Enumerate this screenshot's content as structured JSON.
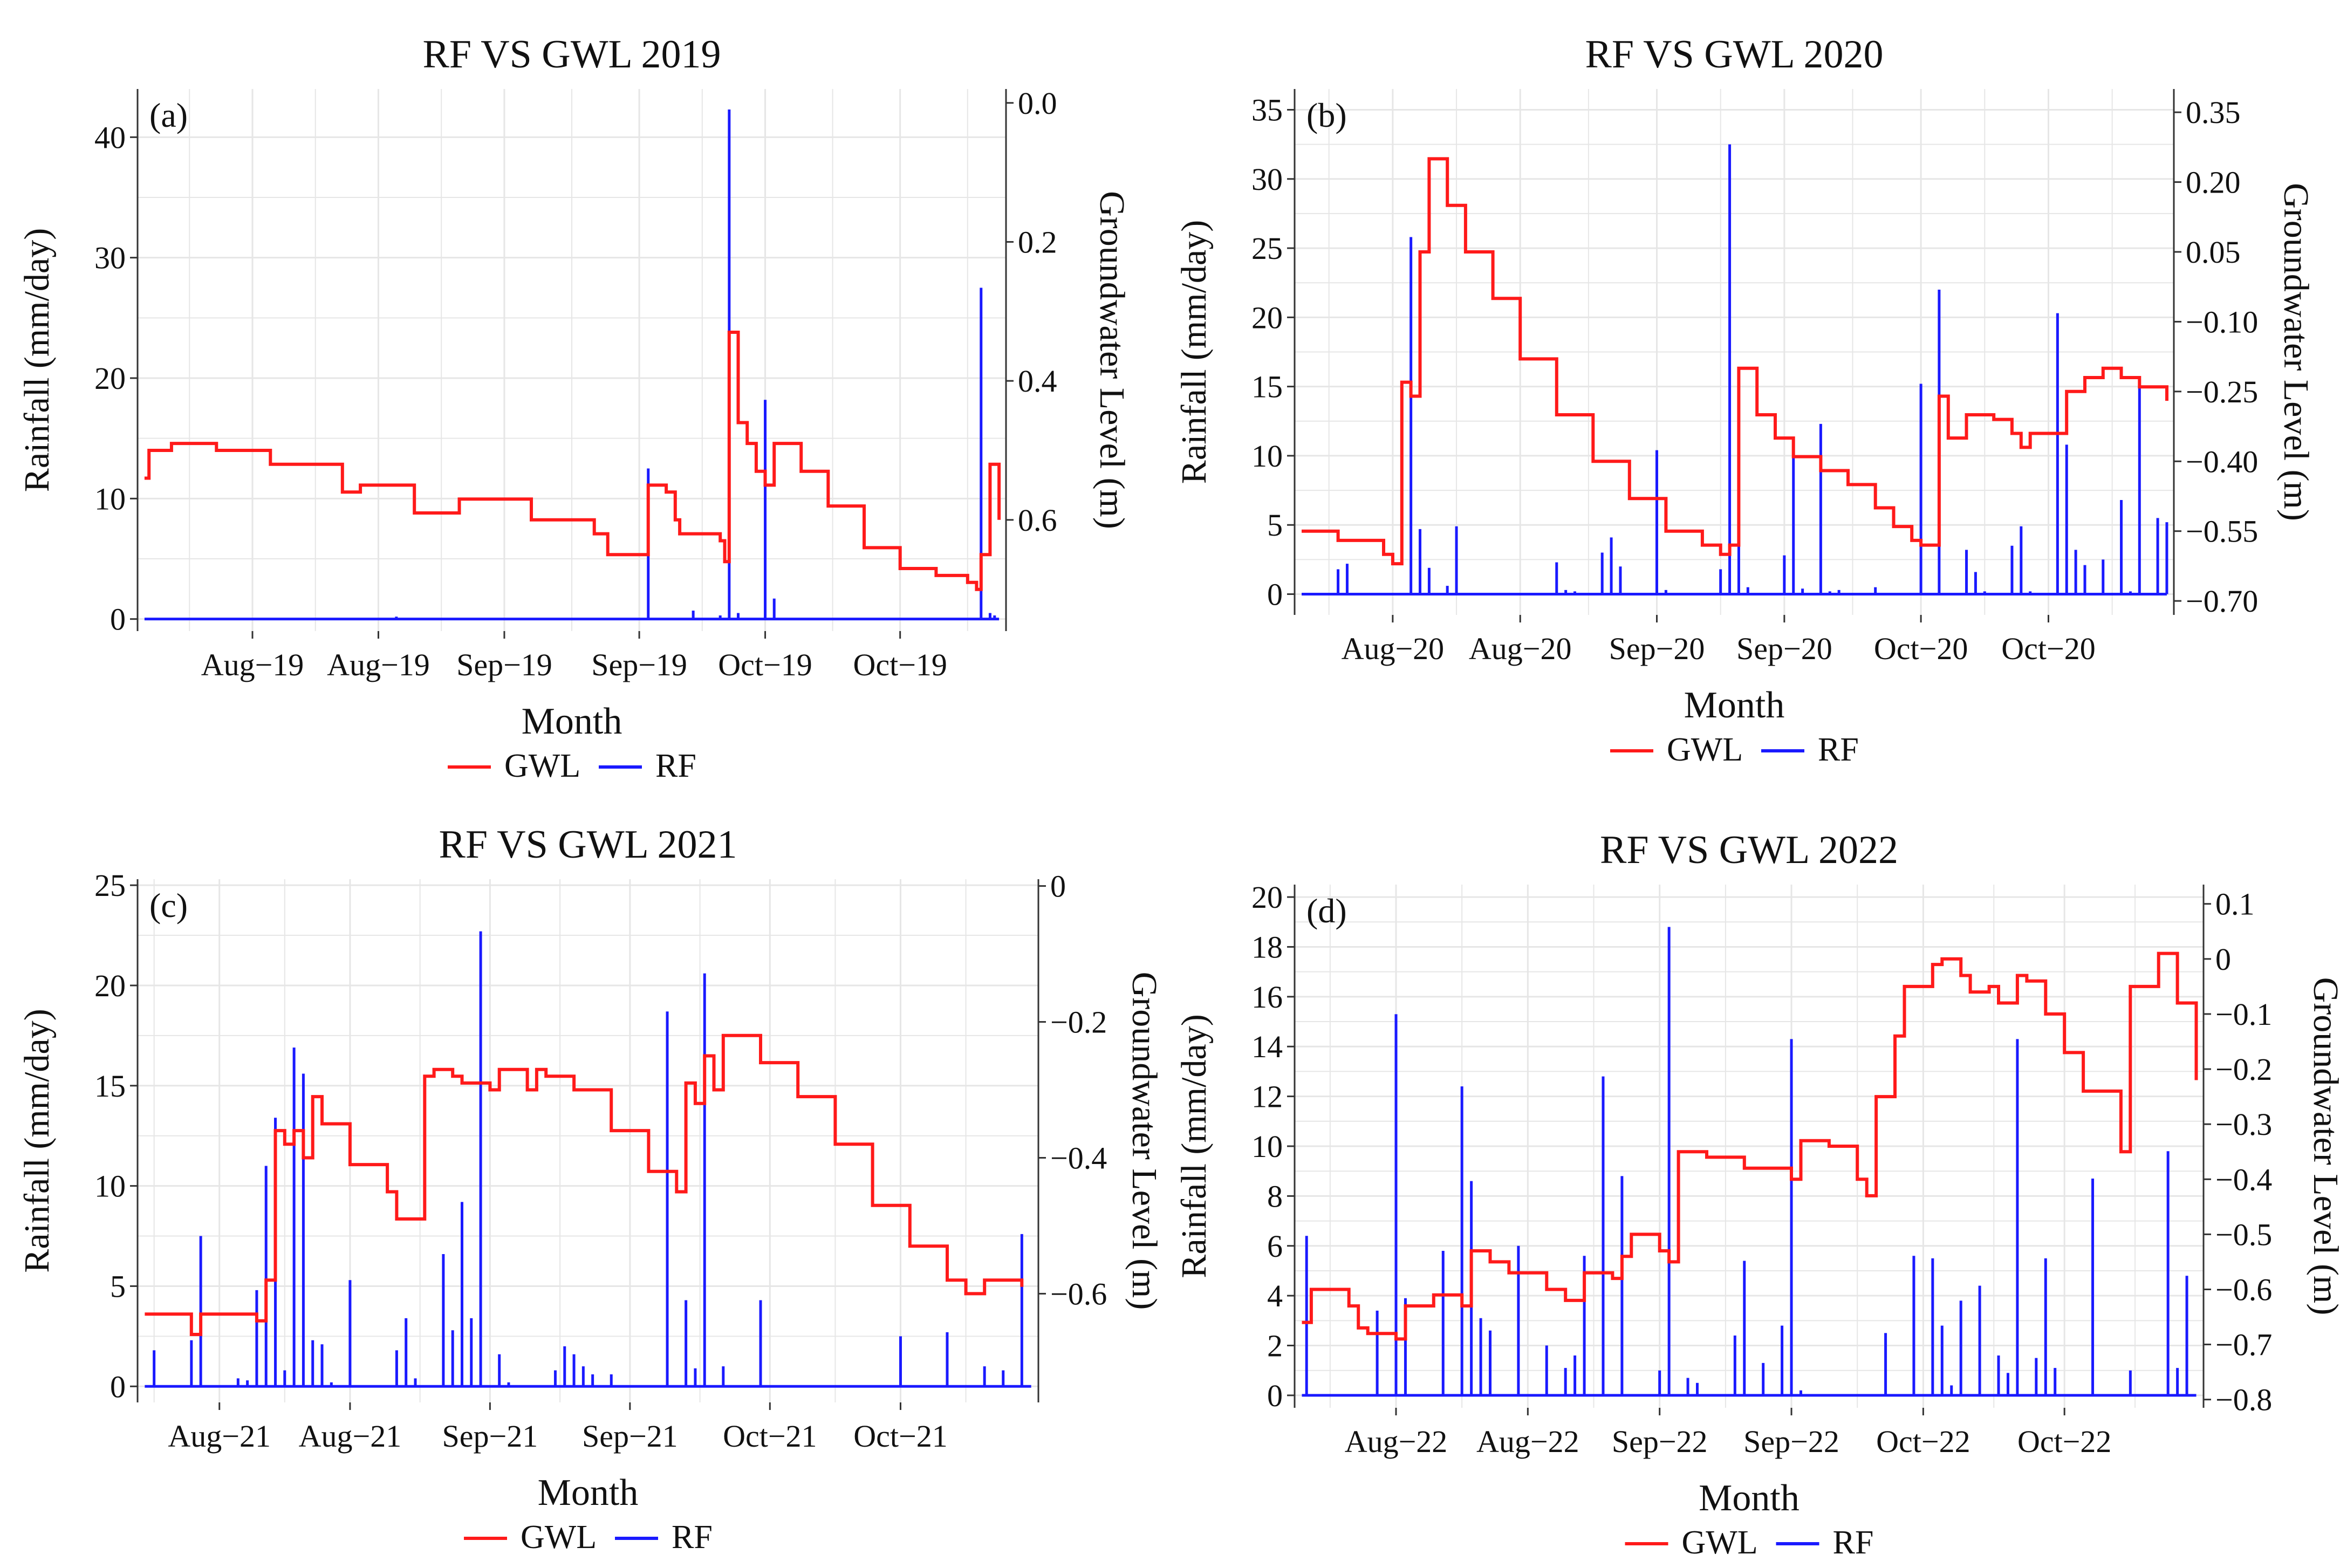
{
  "figure": {
    "x_axis_label": "Month",
    "left_axis_label": "Rainfall (mm/day)",
    "right_axis_label": "Groundwater Level (m)"
  },
  "legend": {
    "gwl": "GWL",
    "rf": "RF"
  },
  "colors": {
    "gwl": "#ff1a1a",
    "rf": "#1a1aff",
    "grid": "#e6e6e6",
    "axis": "#333333"
  },
  "chart_data": [
    {
      "type": "line",
      "title": "RF VS GWL 2019",
      "panel_label": "(a)",
      "xlabel": "Month",
      "ylabel": "Rainfall (mm/day)",
      "ylabel_right": "Groundwater Level (m)",
      "x_tick_labels": [
        "Aug−19",
        "Aug−19",
        "Sep−19",
        "Sep−19",
        "Oct−19",
        "Oct−19"
      ],
      "x_tick_days": [
        12,
        26,
        40,
        55,
        69,
        84
      ],
      "day_range": [
        0,
        95
      ],
      "ylim": [
        -1,
        44
      ],
      "y_ticks": [
        0,
        10,
        20,
        30,
        40
      ],
      "y_tick_labels": [
        "0",
        "10",
        "20",
        "30",
        "40"
      ],
      "ylim_right": [
        0.76,
        -0.02
      ],
      "y2_ticks": [
        0.0,
        0.2,
        0.4,
        0.6
      ],
      "y2_tick_labels": [
        "0.0",
        "0.2",
        "0.4",
        "0.6"
      ],
      "series": [
        {
          "name": "RF",
          "axis": "left",
          "days": [
            28,
            56,
            61,
            64,
            65,
            66,
            69,
            70,
            93,
            94,
            94.5,
            95
          ],
          "values": [
            0.2,
            12.5,
            0.7,
            0.3,
            42.3,
            0.5,
            18.2,
            1.7,
            27.5,
            0.5,
            0.3,
            0
          ]
        },
        {
          "name": "GWL",
          "axis": "right",
          "days": [
            0,
            0.5,
            3,
            8,
            14,
            22,
            24,
            30,
            32,
            35,
            43,
            50,
            51.5,
            55.5,
            56,
            58,
            59,
            59.5,
            64,
            64.5,
            65,
            66,
            67,
            68,
            69,
            70,
            73,
            76,
            80,
            84,
            88,
            91,
            91.5,
            92.5,
            93,
            94,
            95
          ],
          "values": [
            0.54,
            0.5,
            0.49,
            0.5,
            0.52,
            0.56,
            0.55,
            0.59,
            0.59,
            0.57,
            0.6,
            0.62,
            0.65,
            0.65,
            0.55,
            0.56,
            0.6,
            0.62,
            0.63,
            0.66,
            0.33,
            0.46,
            0.49,
            0.53,
            0.55,
            0.49,
            0.53,
            0.58,
            0.64,
            0.67,
            0.68,
            0.68,
            0.69,
            0.7,
            0.65,
            0.52,
            0.6
          ]
        }
      ]
    },
    {
      "type": "line",
      "title": "RF VS GWL 2020",
      "panel_label": "(b)",
      "xlabel": "Month",
      "ylabel": "Rainfall (mm/day)",
      "ylabel_right": "Groundwater Level (m)",
      "x_tick_labels": [
        "Aug−20",
        "Aug−20",
        "Sep−20",
        "Sep−20",
        "Oct−20",
        "Oct−20"
      ],
      "x_tick_days": [
        10,
        24,
        39,
        53,
        68,
        82
      ],
      "day_range": [
        0,
        95
      ],
      "ylim": [
        -1.5,
        36.5
      ],
      "y_ticks": [
        0,
        5,
        10,
        15,
        20,
        25,
        30,
        35
      ],
      "y_tick_labels": [
        "0",
        "5",
        "10",
        "15",
        "20",
        "25",
        "30",
        "35"
      ],
      "ylim_right": [
        -0.73,
        0.4
      ],
      "y2_ticks": [
        0.35,
        0.2,
        0.05,
        -0.1,
        -0.25,
        -0.4,
        -0.55,
        -0.7
      ],
      "y2_tick_labels": [
        "0.35",
        "0.20",
        "0.05",
        "−0.10",
        "−0.25",
        "−0.40",
        "−0.55",
        "−0.70"
      ],
      "series": [
        {
          "name": "RF",
          "axis": "left",
          "days": [
            4,
            5,
            12,
            13,
            14,
            16,
            17,
            28,
            29,
            30,
            33,
            34,
            35,
            39,
            40,
            46,
            47,
            48,
            49,
            53,
            54,
            55,
            57,
            58,
            59,
            63,
            68,
            70,
            73,
            74,
            75,
            78,
            79,
            80,
            83,
            84,
            85,
            86,
            88,
            90,
            91,
            92,
            94,
            95
          ],
          "values": [
            1.8,
            2.2,
            25.8,
            4.7,
            1.9,
            0.6,
            4.9,
            2.3,
            0.3,
            0.2,
            3,
            4.1,
            2,
            10.4,
            0.3,
            1.8,
            32.5,
            7.5,
            0.5,
            2.8,
            11.2,
            0.4,
            12.3,
            0.2,
            0.3,
            0.5,
            15.2,
            22,
            3.2,
            1.6,
            0.2,
            3.5,
            4.9,
            0.2,
            20.3,
            10.8,
            3.2,
            2.1,
            2.5,
            6.8,
            0.2,
            15.5,
            5.5,
            5.2
          ]
        },
        {
          "name": "GWL",
          "axis": "right",
          "days": [
            0,
            4,
            9,
            10,
            11,
            12,
            13,
            14,
            16,
            18,
            21,
            24,
            28,
            32,
            36,
            40,
            44,
            46,
            47,
            48,
            50,
            52,
            54,
            57,
            60,
            63,
            65,
            67,
            68,
            70,
            71,
            73,
            76,
            78,
            79,
            80,
            84,
            86,
            88,
            90,
            92,
            95
          ],
          "values": [
            -0.55,
            -0.57,
            -0.6,
            -0.62,
            -0.23,
            -0.26,
            0.05,
            0.25,
            0.15,
            0.05,
            -0.05,
            -0.18,
            -0.3,
            -0.4,
            -0.48,
            -0.55,
            -0.58,
            -0.6,
            -0.58,
            -0.2,
            -0.3,
            -0.35,
            -0.39,
            -0.42,
            -0.45,
            -0.5,
            -0.54,
            -0.57,
            -0.58,
            -0.26,
            -0.35,
            -0.3,
            -0.31,
            -0.34,
            -0.37,
            -0.34,
            -0.25,
            -0.22,
            -0.2,
            -0.22,
            -0.24,
            -0.27
          ]
        }
      ]
    },
    {
      "type": "line",
      "title": "RF VS GWL 2021",
      "panel_label": "(c)",
      "xlabel": "Month",
      "ylabel": "Rainfall (mm/day)",
      "ylabel_right": "Groundwater Level (m)",
      "x_tick_labels": [
        "Aug−21",
        "Aug−21",
        "Sep−21",
        "Sep−21",
        "Oct−21",
        "Oct−21"
      ],
      "x_tick_days": [
        8,
        22,
        37,
        52,
        67,
        81
      ],
      "day_range": [
        0,
        95
      ],
      "ylim": [
        -0.8,
        25.3
      ],
      "y_ticks": [
        0,
        5,
        10,
        15,
        20,
        25
      ],
      "y_tick_labels": [
        "0",
        "5",
        "10",
        "15",
        "20",
        "25"
      ],
      "ylim_right": [
        -0.76,
        0.01
      ],
      "y2_ticks": [
        0,
        -0.2,
        -0.4,
        -0.6
      ],
      "y2_tick_labels": [
        "0",
        "−0.2",
        "−0.4",
        "−0.6"
      ],
      "series": [
        {
          "name": "RF",
          "axis": "left",
          "days": [
            1,
            5,
            6,
            10,
            11,
            12,
            13,
            14,
            15,
            16,
            17,
            18,
            19,
            20,
            22,
            27,
            28,
            29,
            32,
            33,
            34,
            35,
            36,
            38,
            39,
            44,
            45,
            46,
            47,
            48,
            50,
            56,
            58,
            59,
            60,
            62,
            66,
            81,
            86,
            90,
            92,
            94
          ],
          "values": [
            1.8,
            2.3,
            7.5,
            0.4,
            0.3,
            4.8,
            11,
            13.4,
            0.8,
            16.9,
            15.6,
            2.3,
            2.1,
            0.2,
            5.3,
            1.8,
            3.4,
            0.4,
            6.6,
            2.8,
            9.2,
            3.4,
            22.7,
            1.6,
            0.2,
            0.8,
            2,
            1.6,
            1,
            0.6,
            0.6,
            18.7,
            4.3,
            0.9,
            20.6,
            1,
            4.3,
            2.5,
            2.7,
            1,
            0.8,
            7.6
          ]
        },
        {
          "name": "GWL",
          "axis": "right",
          "days": [
            0,
            5,
            6,
            9,
            12,
            13,
            14,
            15,
            16,
            17,
            18,
            19,
            22,
            26,
            27,
            29,
            30,
            31,
            33,
            34,
            37,
            38,
            41,
            42,
            43,
            46,
            50,
            54,
            57,
            58,
            59,
            60,
            61,
            62,
            66,
            70,
            74,
            78,
            82,
            86,
            88,
            90,
            94
          ],
          "values": [
            -0.63,
            -0.66,
            -0.63,
            -0.63,
            -0.64,
            -0.58,
            -0.36,
            -0.38,
            -0.36,
            -0.4,
            -0.31,
            -0.35,
            -0.41,
            -0.45,
            -0.49,
            -0.49,
            -0.28,
            -0.27,
            -0.28,
            -0.29,
            -0.3,
            -0.27,
            -0.3,
            -0.27,
            -0.28,
            -0.3,
            -0.36,
            -0.42,
            -0.45,
            -0.29,
            -0.32,
            -0.25,
            -0.3,
            -0.22,
            -0.26,
            -0.31,
            -0.38,
            -0.47,
            -0.53,
            -0.58,
            -0.6,
            -0.58,
            -0.59
          ]
        }
      ]
    },
    {
      "type": "line",
      "title": "RF VS GWL 2022",
      "panel_label": "(d)",
      "xlabel": "Month",
      "ylabel": "Rainfall (mm/day)",
      "ylabel_right": "Groundwater Level (m)",
      "x_tick_labels": [
        "Aug−22",
        "Aug−22",
        "Sep−22",
        "Sep−22",
        "Oct−22",
        "Oct−22"
      ],
      "x_tick_days": [
        10,
        24,
        38,
        52,
        66,
        81
      ],
      "day_range": [
        0,
        95
      ],
      "ylim": [
        -0.5,
        20.5
      ],
      "y_ticks": [
        0,
        2,
        4,
        6,
        8,
        10,
        12,
        14,
        16,
        18,
        20
      ],
      "y_tick_labels": [
        "0",
        "2",
        "4",
        "6",
        "8",
        "10",
        "12",
        "14",
        "16",
        "18",
        "20"
      ],
      "ylim_right": [
        -0.815,
        0.135
      ],
      "y2_ticks": [
        0.1,
        0,
        -0.1,
        -0.2,
        -0.3,
        -0.4,
        -0.5,
        -0.6,
        -0.7,
        -0.8
      ],
      "y2_tick_labels": [
        "0.1",
        "0",
        "−0.1",
        "−0.2",
        "−0.3",
        "−0.4",
        "−0.5",
        "−0.6",
        "−0.7",
        "−0.8"
      ],
      "series": [
        {
          "name": "RF",
          "axis": "left",
          "days": [
            0.5,
            8,
            10,
            11,
            15,
            17,
            18,
            19,
            20,
            23,
            26,
            28,
            29,
            30,
            32,
            34,
            38,
            39,
            41,
            42,
            46,
            47,
            49,
            51,
            52,
            53,
            62,
            65,
            67,
            68,
            69,
            70,
            72,
            74,
            75,
            76,
            78,
            79,
            80,
            84,
            88,
            92,
            93,
            94
          ],
          "values": [
            6.4,
            3.4,
            15.3,
            3.9,
            5.8,
            12.4,
            8.6,
            3.1,
            2.6,
            6,
            2,
            1.1,
            1.6,
            5.6,
            12.8,
            8.8,
            1,
            18.8,
            0.7,
            0.5,
            2.4,
            5.4,
            1.3,
            2.8,
            14.3,
            0.2,
            2.5,
            5.6,
            5.5,
            2.8,
            0.4,
            3.8,
            4.4,
            1.6,
            0.9,
            14.3,
            1.5,
            5.5,
            1.1,
            8.7,
            1,
            9.8,
            1.1,
            4.8
          ]
        },
        {
          "name": "GWL",
          "axis": "right",
          "days": [
            0,
            1,
            5,
            6,
            7,
            10,
            11,
            14,
            17,
            18,
            20,
            22,
            26,
            28,
            30,
            31,
            33,
            34,
            35,
            36,
            38,
            39,
            40,
            43,
            47,
            52,
            53,
            54,
            56,
            59,
            60,
            61,
            63,
            64,
            67,
            68,
            70,
            71,
            73,
            74,
            76,
            77,
            79,
            81,
            83,
            87,
            88,
            91,
            93,
            95
          ],
          "values": [
            -0.66,
            -0.6,
            -0.63,
            -0.67,
            -0.68,
            -0.69,
            -0.63,
            -0.61,
            -0.63,
            -0.53,
            -0.55,
            -0.57,
            -0.6,
            -0.62,
            -0.57,
            -0.57,
            -0.58,
            -0.54,
            -0.5,
            -0.5,
            -0.53,
            -0.55,
            -0.35,
            -0.36,
            -0.38,
            -0.4,
            -0.33,
            -0.33,
            -0.34,
            -0.4,
            -0.43,
            -0.25,
            -0.14,
            -0.05,
            -0.01,
            0,
            -0.03,
            -0.06,
            -0.05,
            -0.08,
            -0.03,
            -0.04,
            -0.1,
            -0.17,
            -0.24,
            -0.35,
            -0.05,
            0.01,
            -0.08,
            -0.22
          ]
        }
      ]
    }
  ]
}
